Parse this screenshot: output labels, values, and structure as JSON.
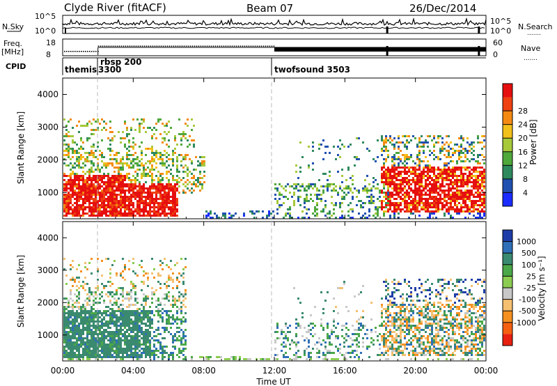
{
  "header": {
    "station": "Clyde River (fitACF)",
    "beam": "Beam 07",
    "date": "26/Dec/2014"
  },
  "side_labels": {
    "nsky": "N.Sky",
    "freq_line1": "Freq.",
    "freq_line2": "[MHz]",
    "cpid": "CPID",
    "nsearch": "N.Search",
    "nave": "Nave",
    "dots": "......."
  },
  "chart_data": [
    {
      "type": "line",
      "name": "noise-strip",
      "left_ticks": [
        "10^5",
        "10^0"
      ],
      "right_ticks": [
        "10^5",
        "10^0"
      ]
    },
    {
      "type": "line",
      "name": "freq-nave-strip",
      "left_ticks": [
        "18",
        "8"
      ],
      "right_ticks": [
        "60",
        "0"
      ]
    },
    {
      "type": "table",
      "name": "cpid-strip",
      "labels": [
        "themis",
        "3300",
        "rbsp 200",
        "twofsound 3503"
      ]
    },
    {
      "type": "heatmap",
      "name": "power",
      "ylabel": "Slant Range [km]",
      "yticks": [
        "1000",
        "2000",
        "3000",
        "4000"
      ],
      "ylim": [
        200,
        4500
      ],
      "xlim": [
        0,
        24
      ],
      "colorbar_label": "Power [dB]",
      "colorbar_ticks": [
        "4",
        "8",
        "12",
        "16",
        "20",
        "24",
        "28"
      ],
      "colorbar_colors": [
        "#1a2cff",
        "#2050b0",
        "#2e8a5e",
        "#4ea83a",
        "#a6c93a",
        "#f2c01a",
        "#f58a12",
        "#ee4010",
        "#e60f0f"
      ]
    },
    {
      "type": "heatmap",
      "name": "velocity",
      "ylabel": "Slant Range [km]",
      "yticks": [
        "1000",
        "2000",
        "3000",
        "4000"
      ],
      "ylim": [
        200,
        4500
      ],
      "xlim": [
        0,
        24
      ],
      "colorbar_label": "Velocity [m s⁻¹]",
      "colorbar_ticks": [
        "1000",
        "500",
        "100",
        "25",
        "-25",
        "-100",
        "-500",
        "-1000"
      ],
      "colorbar_colors": [
        "#1f3da8",
        "#2e6fb8",
        "#3a8a70",
        "#4aa848",
        "#8ccc50",
        "#c8c8c8",
        "#f5c070",
        "#f59020",
        "#f56010",
        "#e82010"
      ]
    }
  ],
  "x_axis": {
    "ticks": [
      "00:00",
      "04:00",
      "08:00",
      "12:00",
      "16:00",
      "20:00",
      "00:00"
    ],
    "label": "Time UT"
  }
}
